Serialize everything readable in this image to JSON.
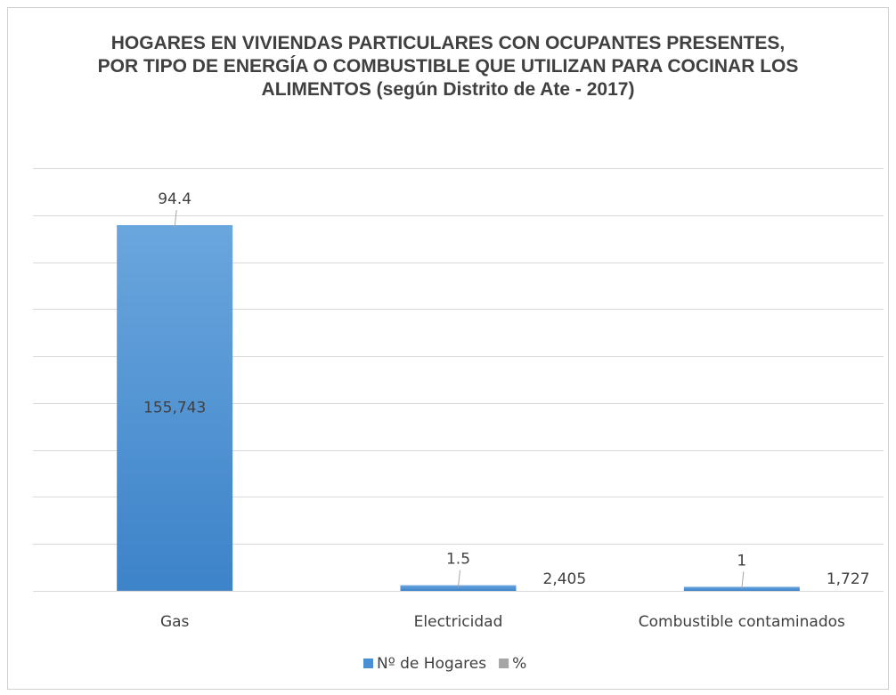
{
  "chart_data": {
    "type": "bar",
    "title": "HOGARES EN VIVIENDAS PARTICULARES CON OCUPANTES PRESENTES, POR TIPO DE ENERGÍA O COMBUSTIBLE QUE UTILIZAN PARA COCINAR LOS ALIMENTOS (según Distrito de Ate - 2017)",
    "categories": [
      "Gas",
      "Electricidad",
      "Combustible contaminados"
    ],
    "series": [
      {
        "name": "Nº de Hogares",
        "color": "#4a8fd4",
        "values": [
          155743,
          2405,
          1727
        ],
        "value_labels": [
          "155,743",
          "2,405",
          "1,727"
        ]
      },
      {
        "name": "%",
        "color": "#a5a5a5",
        "values": [
          94.4,
          1.5,
          1
        ]
      }
    ],
    "ylim": [
      0,
      180000
    ],
    "yticks": [
      0,
      20000,
      40000,
      60000,
      80000,
      100000,
      120000,
      140000,
      160000,
      180000
    ],
    "grid": true,
    "legend": "bottom"
  }
}
